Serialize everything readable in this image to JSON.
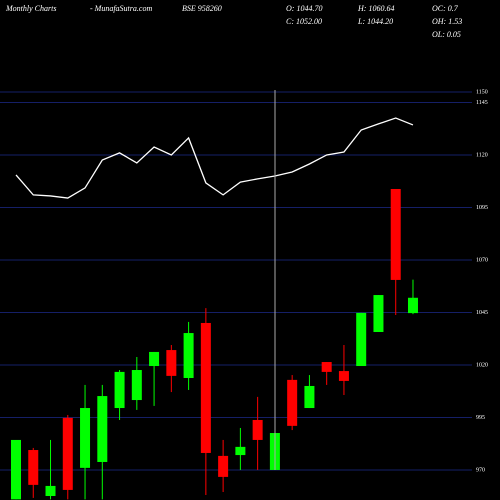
{
  "header": {
    "site": "Monthly Charts",
    "source": "- MunafaSutra.com",
    "symbol": "BSE 958260",
    "open": "O: 1044.70",
    "close": "C: 1052.00",
    "high": "H: 1060.64",
    "low": "L: 1044.20",
    "oc": "OC: 0.7",
    "oh": "OH: 1.53",
    "ol": "OL: 0.05"
  },
  "chart_data": {
    "type": "candlestick",
    "up_color": "#00ff00",
    "down_color": "#ff0000",
    "grid": true,
    "grid_color": "#1c2a8a",
    "ylim": [
      955.7,
      1193.8
    ],
    "yticks": [
      970,
      995,
      1020,
      1045,
      1070,
      1095,
      1120,
      1145,
      1150
    ],
    "open": [
      956,
      979.5,
      957.6,
      994.8,
      971,
      973.8,
      999.5,
      1003.3,
      1019.5,
      1027.1,
      1013.8,
      1040,
      976.7,
      977.1,
      993.8,
      970,
      1012.9,
      999.5,
      1021.4,
      1017.1,
      1019.5,
      1035.7,
      1103.8,
      1044.7
    ],
    "high": [
      984.3,
      980.5,
      984.3,
      996.2,
      1010.5,
      1010.5,
      1017.6,
      1023.8,
      1026.2,
      1029.5,
      1040.5,
      1047.1,
      984.3,
      990,
      1004.8,
      987.6,
      1015.2,
      1015.2,
      1021.4,
      1029.5,
      1044.8,
      1053.3,
      1103.8,
      1060.64
    ],
    "low": [
      956,
      956.7,
      956,
      956,
      956,
      956,
      993.8,
      998.6,
      1000.5,
      1007.1,
      1008.1,
      958.1,
      959.5,
      970,
      970,
      970,
      989,
      999.5,
      1010.5,
      1005.7,
      1019.5,
      1035.7,
      1043.8,
      1044.2
    ],
    "close": [
      984.3,
      962.9,
      962.4,
      960.5,
      999.5,
      1005.2,
      1016.7,
      1017.6,
      1026.2,
      1014.8,
      1035.2,
      978.1,
      966.7,
      981,
      984.3,
      987.6,
      991,
      1010,
      1016.7,
      1012.4,
      1044.8,
      1053.3,
      1060.5,
      1052
    ],
    "line": {
      "color": "#ffffff",
      "values": [
        1110.5,
        1101,
        1100.5,
        1099.5,
        1104.3,
        1117.6,
        1121,
        1116.2,
        1123.8,
        1120,
        1128.1,
        1106.7,
        1101,
        1107.1,
        1108.6,
        1110,
        1111.9,
        1115.7,
        1120,
        1121.4,
        1131.9,
        1134.8,
        1137.6,
        1134.3
      ]
    }
  }
}
